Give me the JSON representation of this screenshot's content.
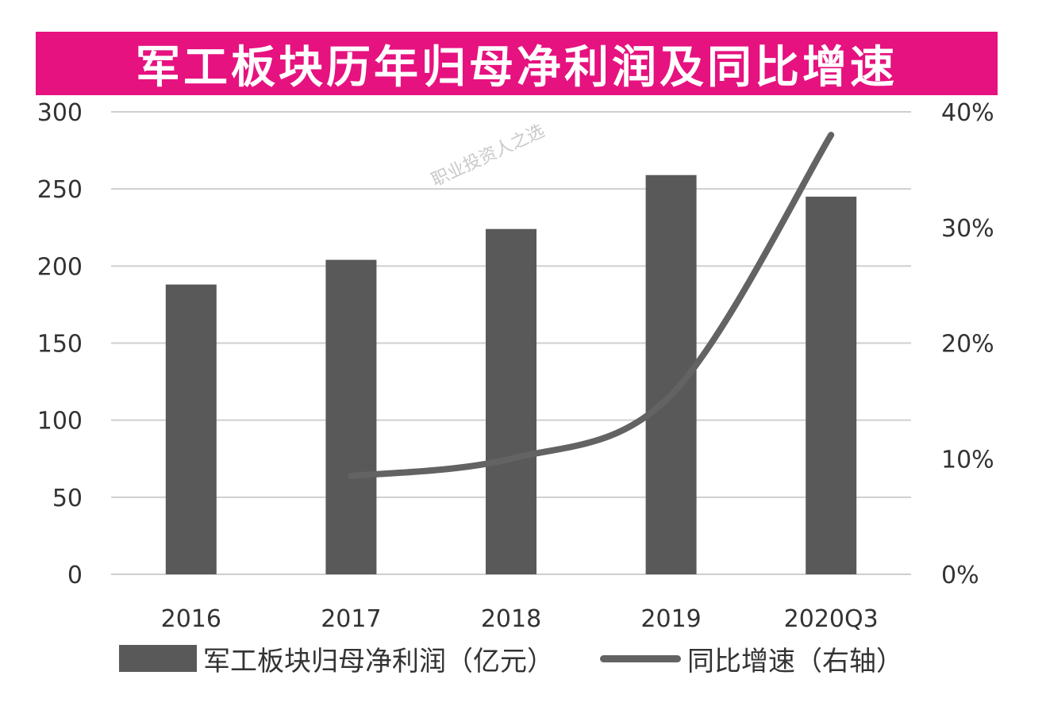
{
  "title": "军工板块历年归母净利润及同比增速",
  "watermark": "职业投资人之选",
  "chart_data": {
    "type": "bar",
    "categories": [
      "2016",
      "2017",
      "2018",
      "2019",
      "2020Q3"
    ],
    "series": [
      {
        "name": "军工板块归母净利润（亿元）",
        "type": "bar",
        "axis": "left",
        "values": [
          188,
          204,
          224,
          259,
          245
        ]
      },
      {
        "name": "同比增速（右轴）",
        "type": "line",
        "axis": "right",
        "values": [
          null,
          8.5,
          10.0,
          15.5,
          38.0
        ]
      }
    ],
    "y_left": {
      "ylim": [
        0,
        300
      ],
      "ticks": [
        0,
        50,
        100,
        150,
        200,
        250,
        300
      ]
    },
    "y_right": {
      "ylim": [
        0,
        40
      ],
      "ticks": [
        "0%",
        "10%",
        "20%",
        "30%",
        "40%"
      ]
    },
    "grid": true,
    "legend_position": "bottom",
    "colors": {
      "bar": "#595959",
      "line": "#636363",
      "grid": "#cfcfcf",
      "title_bg": "#e6127f"
    }
  }
}
